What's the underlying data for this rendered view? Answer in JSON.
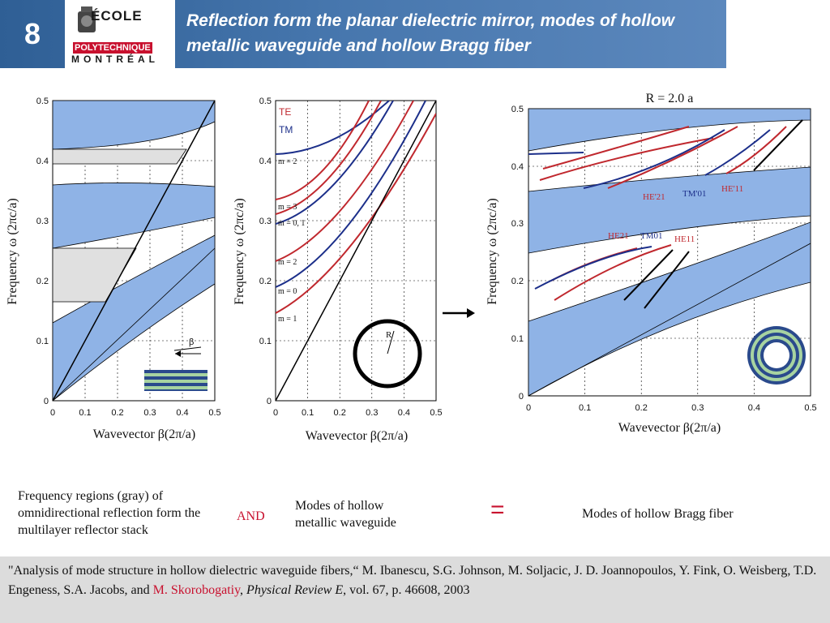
{
  "header": {
    "slide_number": "8",
    "logo": {
      "line1": "ÉCOLE",
      "line2": "POLYTECHNIQUE",
      "line3": "MONTRÉAL"
    },
    "title": "Reflection form the planar dielectric mirror, modes of hollow metallic waveguide and hollow Bragg fiber"
  },
  "plots": {
    "ylabel": "Frequency ω (2πc/a)",
    "xlabel": "Wavevector β(2π/a)",
    "x_ticks": [
      "0",
      "0.1",
      "0.2",
      "0.3",
      "0.4",
      "0.5"
    ],
    "y_ticks": [
      "0",
      "0.1",
      "0.2",
      "0.3",
      "0.4",
      "0.5"
    ],
    "left": {
      "beta_label": "β"
    },
    "middle": {
      "legend_te": "TE",
      "legend_tm": "TM",
      "mode_labels": [
        "m = 2",
        "m = 3",
        "m = 0, 1",
        "m = 2",
        "m = 0",
        "m = 1"
      ],
      "r_label": "R"
    },
    "right": {
      "title": "R = 2.0 a",
      "labels_upper": [
        "HE'21",
        "TM'01",
        "HE'11"
      ],
      "labels_lower": [
        "HE21",
        "TM01",
        "HE11"
      ]
    }
  },
  "captions": {
    "left": "Frequency regions (gray) of omnidirectional reflection form the multilayer reflector stack",
    "and": "AND",
    "middle": "Modes of hollow metallic waveguide",
    "equals": "=",
    "right": "Modes of hollow Bragg fiber"
  },
  "reference": {
    "part1": "\"Analysis of mode structure in hollow dielectric waveguide fibers,“ M. Ibanescu, S.G. Johnson, M. Soljacic, J. D. Joannopoulos, Y. Fink, O. Weisberg, T.D. Engeness, S.A. Jacobs, and ",
    "highlight_author": "M. Skorobogatiy",
    "part2": ", ",
    "journal": "Physical Review E",
    "part3": ", vol. 67, p. 46608, 2003"
  },
  "colors": {
    "header_blue": "#3e6ba4",
    "band_blue": "#8fb3e6",
    "gray_region": "#e0e0e0",
    "te_red": "#c0282e",
    "tm_blue": "#1c2f8a",
    "accent_red": "#c8102e"
  }
}
